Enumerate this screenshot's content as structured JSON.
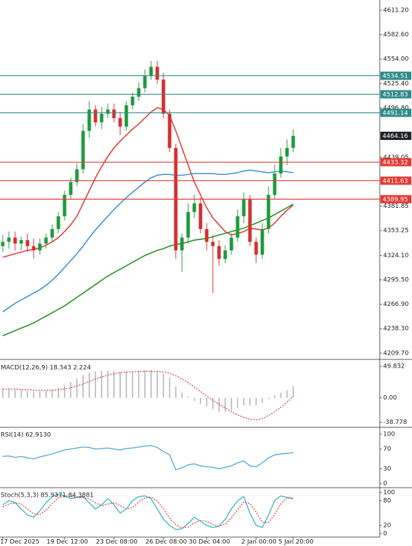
{
  "chart_data": [
    {
      "type": "candlestick",
      "categories": [
        "17 Dec 2025",
        null,
        null,
        null,
        null,
        null,
        null,
        null,
        null,
        null,
        "19 Dec 12:00",
        null,
        null,
        null,
        null,
        null,
        null,
        null,
        "23 Dec 08:00",
        null,
        null,
        null,
        null,
        null,
        null,
        null,
        "26 Dec 08:00",
        null,
        null,
        null,
        null,
        null,
        null,
        "30 Dec 04:00",
        null,
        null,
        null,
        null,
        null,
        null,
        null,
        "2 Jan 00:00",
        null,
        null,
        null,
        null,
        null,
        "5 Jan 20:00"
      ],
      "open": [
        4335,
        4340,
        4345,
        4338,
        4342,
        4335,
        4330,
        4338,
        4345,
        4355,
        4370,
        4395,
        4410,
        4425,
        4470,
        4495,
        4480,
        4490,
        4495,
        4485,
        4475,
        4500,
        4510,
        4520,
        4535,
        4545,
        4530,
        4490,
        4450,
        4330,
        4345,
        4375,
        4385,
        4355,
        4340,
        4335,
        4320,
        4330,
        4345,
        4370,
        4390,
        4340,
        4325,
        4355,
        4395,
        4420,
        4440,
        4450
      ],
      "high": [
        4348,
        4352,
        4352,
        4346,
        4350,
        4344,
        4344,
        4350,
        4360,
        4375,
        4400,
        4415,
        4432,
        4478,
        4505,
        4500,
        4498,
        4502,
        4502,
        4492,
        4505,
        4515,
        4527,
        4542,
        4552,
        4552,
        4538,
        4495,
        4455,
        4350,
        4385,
        4395,
        4392,
        4362,
        4348,
        4342,
        4336,
        4350,
        4378,
        4398,
        4395,
        4345,
        4362,
        4405,
        4430,
        4450,
        4460,
        4472
      ],
      "low": [
        4328,
        4332,
        4330,
        4330,
        4328,
        4320,
        4325,
        4332,
        4340,
        4350,
        4365,
        4390,
        4405,
        4420,
        4462,
        4475,
        4472,
        4485,
        4480,
        4465,
        4470,
        4495,
        4505,
        4515,
        4530,
        4525,
        4485,
        4445,
        4320,
        4305,
        4338,
        4368,
        4350,
        4330,
        4280,
        4312,
        4315,
        4325,
        4340,
        4362,
        4335,
        4315,
        4320,
        4350,
        4390,
        4415,
        4430,
        4445
      ],
      "close": [
        4340,
        4345,
        4338,
        4342,
        4335,
        4330,
        4338,
        4345,
        4355,
        4370,
        4395,
        4410,
        4425,
        4470,
        4495,
        4480,
        4490,
        4495,
        4485,
        4475,
        4500,
        4510,
        4520,
        4535,
        4545,
        4530,
        4490,
        4450,
        4330,
        4345,
        4375,
        4385,
        4355,
        4340,
        4335,
        4320,
        4330,
        4345,
        4370,
        4390,
        4340,
        4325,
        4355,
        4395,
        4420,
        4440,
        4450,
        4464.16
      ],
      "up_color": "#1e9a3c",
      "down_color": "#d32f2f",
      "overlays": [
        {
          "color": "#e53935",
          "values": [
            4322,
            4324,
            4326,
            4328,
            4330,
            4331,
            4333,
            4336,
            4340,
            4345,
            4352,
            4360,
            4370,
            4385,
            4400,
            4415,
            4428,
            4440,
            4450,
            4458,
            4465,
            4472,
            4478,
            4485,
            4492,
            4497,
            4495,
            4488,
            4470,
            4450,
            4430,
            4410,
            4395,
            4380,
            4368,
            4360,
            4352,
            4348,
            4350,
            4352,
            4356,
            4355,
            4354,
            4356,
            4362,
            4370,
            4377,
            4383
          ]
        },
        {
          "color": "#3a8fd8",
          "values": [
            4258,
            4263,
            4268,
            4272,
            4276,
            4280,
            4284,
            4289,
            4295,
            4302,
            4310,
            4318,
            4326,
            4335,
            4345,
            4354,
            4362,
            4370,
            4378,
            4385,
            4392,
            4398,
            4404,
            4410,
            4415,
            4418,
            4419,
            4419,
            4418,
            4418,
            4419,
            4420,
            4420,
            4420,
            4420,
            4419,
            4419,
            4420,
            4421,
            4423,
            4424,
            4423,
            4422,
            4421,
            4422,
            4423,
            4422,
            4421
          ]
        },
        {
          "color": "#1f8f1f",
          "values": [
            4230,
            4233,
            4236,
            4239,
            4242,
            4245,
            4249,
            4253,
            4257,
            4261,
            4265,
            4270,
            4275,
            4280,
            4285,
            4290,
            4295,
            4300,
            4304,
            4308,
            4312,
            4316,
            4320,
            4324,
            4327,
            4330,
            4332,
            4335,
            4337,
            4338,
            4340,
            4342,
            4343,
            4344,
            4346,
            4348,
            4350,
            4352,
            4354,
            4356,
            4359,
            4362,
            4365,
            4368,
            4372,
            4376,
            4380,
            4384
          ]
        }
      ],
      "levels": [
        {
          "value": 4534.51,
          "color": "#2e8b8b"
        },
        {
          "value": 4512.83,
          "color": "#2e8b8b"
        },
        {
          "value": 4491.14,
          "color": "#2e8b8b"
        },
        {
          "value": 4464.16,
          "color": "#1f2328",
          "line": false
        },
        {
          "value": 4433.32,
          "color": "#e53935"
        },
        {
          "value": 4411.63,
          "color": "#e53935"
        },
        {
          "value": 4389.95,
          "color": "#e53935"
        }
      ],
      "ylim": [
        4203.9,
        4623.25
      ],
      "yticks": [
        {
          "value": 4611.2,
          "label": "4611.20"
        },
        {
          "value": 4582.6,
          "label": "4582.60"
        },
        {
          "value": 4554,
          "label": "4554.00"
        },
        {
          "value": 4525.4,
          "label": "4525.40"
        },
        {
          "value": 4496.8,
          "label": "4496.80"
        },
        4439.05,
        4381.85,
        4353.25,
        {
          "value": 4324.1,
          "label": "4324.10"
        },
        {
          "value": 4295.5,
          "label": "4295.50"
        },
        {
          "value": 4266.9,
          "label": "4266.90"
        },
        {
          "value": 4238.3,
          "label": "4238.30"
        },
        {
          "value": 4209.7,
          "label": "4209.70"
        }
      ]
    },
    {
      "type": "macd",
      "title": "MACD(12,26,9) 18.343 2.224",
      "series": [
        {
          "style": "histogram",
          "color": "#b0b0b0",
          "values": [
            15,
            14,
            13,
            12,
            11,
            10,
            10,
            11,
            13,
            16,
            20,
            25,
            30,
            36,
            40,
            42,
            43,
            43,
            42,
            41,
            41,
            42,
            43,
            44,
            44,
            42,
            38,
            32,
            18,
            8,
            2,
            -5,
            -10,
            -14,
            -18,
            -22,
            -22,
            -20,
            -16,
            -12,
            -12,
            -12,
            -8,
            -2,
            4,
            8,
            12,
            18.343
          ]
        },
        {
          "style": "dotted",
          "color": "#e53935",
          "values": [
            14,
            14,
            14,
            13,
            13,
            12,
            12,
            12,
            12,
            13,
            14,
            16,
            19,
            22,
            26,
            30,
            33,
            36,
            38,
            40,
            41,
            41,
            42,
            42,
            42,
            42,
            41,
            39,
            35,
            30,
            24,
            17,
            10,
            3,
            -4,
            -10,
            -16,
            -22,
            -27,
            -31,
            -34,
            -35,
            -33,
            -28,
            -22,
            -15,
            -7,
            2.224
          ]
        }
      ],
      "ylim": [
        -45.65,
        58.7
      ],
      "yticks": [
        49.832,
        {
          "value": 0,
          "label": "0.00"
        },
        -38.778
      ]
    },
    {
      "type": "line",
      "title": "RSI(14) 62.9130",
      "series": [
        {
          "color": "#4aa3df",
          "values": [
            55,
            56,
            53,
            55,
            52,
            50,
            54,
            57,
            60,
            64,
            68,
            70,
            72,
            74,
            73,
            70,
            71,
            72,
            70,
            68,
            71,
            72,
            74,
            76,
            77,
            73,
            65,
            58,
            28,
            32,
            38,
            40,
            36,
            34,
            33,
            30,
            33,
            36,
            42,
            46,
            36,
            34,
            42,
            52,
            58,
            60,
            61,
            62.913
          ]
        }
      ],
      "ylim": [
        -6.94,
        112.5
      ],
      "yticks": [
        100,
        70,
        30,
        0
      ]
    },
    {
      "type": "line",
      "title": "Stoch(5,3,3) 85.9371 84.3881",
      "series": [
        {
          "color": "#2bb5c4",
          "values": [
            70,
            80,
            75,
            60,
            45,
            40,
            55,
            75,
            90,
            95,
            92,
            85,
            88,
            90,
            75,
            60,
            70,
            85,
            70,
            50,
            60,
            80,
            90,
            92,
            85,
            60,
            35,
            20,
            10,
            12,
            25,
            40,
            30,
            20,
            15,
            18,
            35,
            60,
            80,
            90,
            50,
            20,
            15,
            45,
            80,
            92,
            88,
            85.9371
          ]
        },
        {
          "style": "dotted",
          "color": "#e53935",
          "values": [
            65,
            72,
            75,
            72,
            60,
            48,
            47,
            57,
            73,
            87,
            92,
            91,
            88,
            88,
            84,
            75,
            68,
            72,
            75,
            68,
            60,
            63,
            77,
            87,
            89,
            79,
            60,
            38,
            22,
            14,
            16,
            26,
            32,
            30,
            22,
            18,
            23,
            38,
            58,
            77,
            73,
            53,
            28,
            27,
            47,
            72,
            87,
            84.3881
          ]
        }
      ],
      "ylim": [
        -6.7,
        110
      ],
      "yticks": [
        100,
        80,
        20,
        0
      ]
    }
  ]
}
